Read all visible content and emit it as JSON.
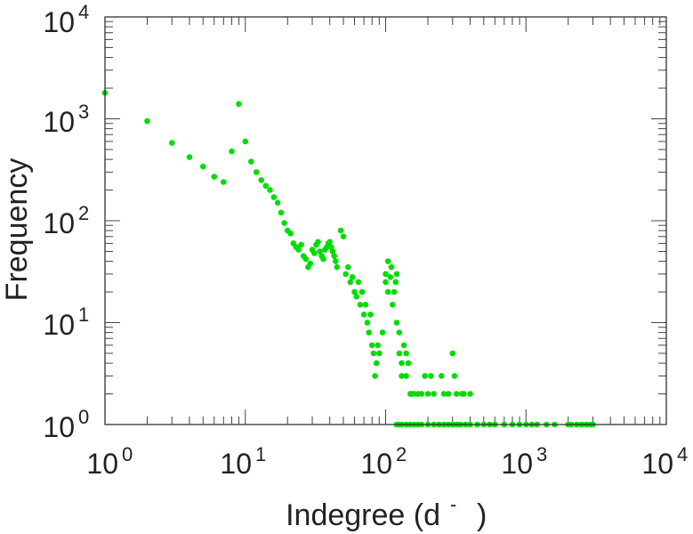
{
  "chart_data": {
    "type": "scatter",
    "title": "",
    "xlabel": "Indegree (d",
    "xlabel_suffix": "-",
    "ylabel": "Frequency",
    "xscale": "log",
    "yscale": "log",
    "xlim": [
      1,
      10000
    ],
    "ylim": [
      1,
      10000
    ],
    "grid": false,
    "legend": "none",
    "marker_color": "#00dd00",
    "x_tick_labels": [
      {
        "base": "10",
        "exp": "0"
      },
      {
        "base": "10",
        "exp": "1"
      },
      {
        "base": "10",
        "exp": "2"
      },
      {
        "base": "10",
        "exp": "3"
      },
      {
        "base": "10",
        "exp": "4"
      }
    ],
    "y_tick_labels": [
      {
        "base": "10",
        "exp": "0"
      },
      {
        "base": "10",
        "exp": "1"
      },
      {
        "base": "10",
        "exp": "2"
      },
      {
        "base": "10",
        "exp": "3"
      },
      {
        "base": "10",
        "exp": "4"
      }
    ],
    "x_ticks": [
      1,
      10,
      100,
      1000,
      10000
    ],
    "y_ticks": [
      1,
      10,
      100,
      1000,
      10000
    ],
    "series": [
      {
        "x": [
          1,
          2,
          3,
          4,
          5,
          6,
          7,
          8,
          9,
          10,
          11,
          12,
          13,
          14,
          15,
          16,
          17,
          18,
          19,
          20,
          21,
          22,
          23,
          24,
          25,
          26,
          27,
          28,
          29,
          30,
          31,
          32,
          33,
          34,
          35,
          36,
          37,
          38,
          39,
          40,
          41,
          42,
          43,
          44,
          45,
          48,
          50,
          52,
          54,
          56,
          58,
          60,
          62,
          64,
          66,
          68,
          70,
          72,
          74,
          76,
          78,
          80,
          82,
          84,
          86,
          88,
          90,
          95,
          100,
          100,
          104,
          104,
          108,
          110,
          112,
          115,
          118,
          120,
          120,
          125,
          125,
          130,
          130,
          135,
          140,
          140,
          145,
          150,
          150,
          155,
          160,
          170,
          180,
          190,
          200,
          210,
          220,
          250,
          260,
          280,
          300,
          310,
          320,
          350,
          360,
          400,
          120,
          125,
          130,
          140,
          150,
          160,
          170,
          180,
          200,
          220,
          240,
          260,
          280,
          300,
          320,
          340,
          370,
          400,
          450,
          500,
          550,
          600,
          700,
          800,
          900,
          1000,
          1100,
          1200,
          1400,
          1600,
          2000,
          2100,
          2300,
          2500,
          2700,
          2900,
          3000
        ],
        "y": [
          1800,
          950,
          580,
          420,
          340,
          270,
          240,
          480,
          1400,
          600,
          380,
          300,
          250,
          220,
          200,
          170,
          150,
          120,
          95,
          80,
          75,
          60,
          55,
          52,
          58,
          45,
          42,
          35,
          38,
          52,
          48,
          58,
          62,
          50,
          45,
          42,
          52,
          55,
          60,
          62,
          55,
          50,
          45,
          40,
          35,
          80,
          70,
          30,
          35,
          25,
          28,
          20,
          18,
          25,
          15,
          20,
          12,
          15,
          10,
          8,
          12,
          6,
          5,
          3,
          4,
          6,
          5,
          8,
          30,
          25,
          40,
          20,
          28,
          35,
          15,
          20,
          25,
          30,
          10,
          8,
          5,
          4,
          3,
          6,
          5,
          3,
          4,
          2,
          2,
          2,
          2,
          2,
          2,
          3,
          2,
          3,
          2,
          3,
          2,
          2,
          5,
          3,
          2,
          2,
          2,
          2,
          1,
          1,
          1,
          1,
          1,
          1,
          1,
          1,
          1,
          1,
          1,
          1,
          1,
          1,
          1,
          1,
          1,
          1,
          1,
          1,
          1,
          1,
          1,
          1,
          1,
          1,
          1,
          1,
          1,
          1,
          1,
          1,
          1,
          1,
          1,
          1,
          1
        ]
      }
    ]
  }
}
